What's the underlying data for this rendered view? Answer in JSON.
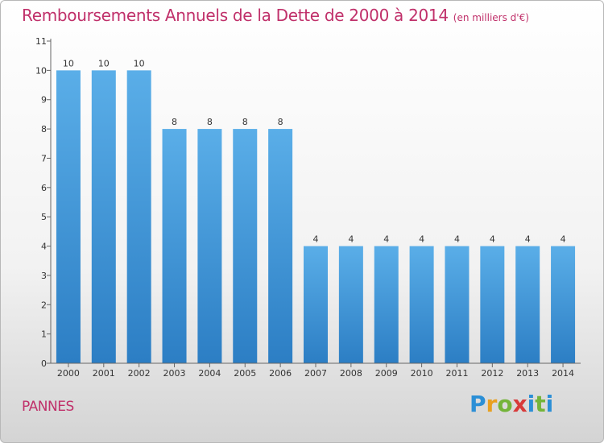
{
  "title": "Remboursements Annuels de la Dette de 2000 à 2014",
  "subtitle": "(en milliers d'€)",
  "place": "PANNES",
  "logo": {
    "letters": [
      "P",
      "r",
      "o",
      "x",
      "i",
      "t",
      "i"
    ]
  },
  "colors": {
    "title": "#c0306a",
    "bar_top": "#5aaee8",
    "bar_bottom": "#2c7ec4"
  },
  "chart_data": {
    "type": "bar",
    "title": "Remboursements Annuels de la Dette de 2000 à 2014",
    "subtitle": "(en milliers d'€)",
    "categories": [
      "2000",
      "2001",
      "2002",
      "2003",
      "2004",
      "2005",
      "2006",
      "2007",
      "2008",
      "2009",
      "2010",
      "2011",
      "2012",
      "2013",
      "2014"
    ],
    "values": [
      10,
      10,
      10,
      8,
      8,
      8,
      8,
      4,
      4,
      4,
      4,
      4,
      4,
      4,
      4
    ],
    "data_labels": [
      "10",
      "10",
      "10",
      "8",
      "8",
      "8",
      "8",
      "4",
      "4",
      "4",
      "4",
      "4",
      "4",
      "4",
      "4"
    ],
    "ylim": [
      0,
      11
    ],
    "yticks": [
      0,
      1,
      2,
      3,
      4,
      5,
      6,
      7,
      8,
      9,
      10,
      11
    ],
    "grid": false,
    "xlabel": "",
    "ylabel": ""
  }
}
